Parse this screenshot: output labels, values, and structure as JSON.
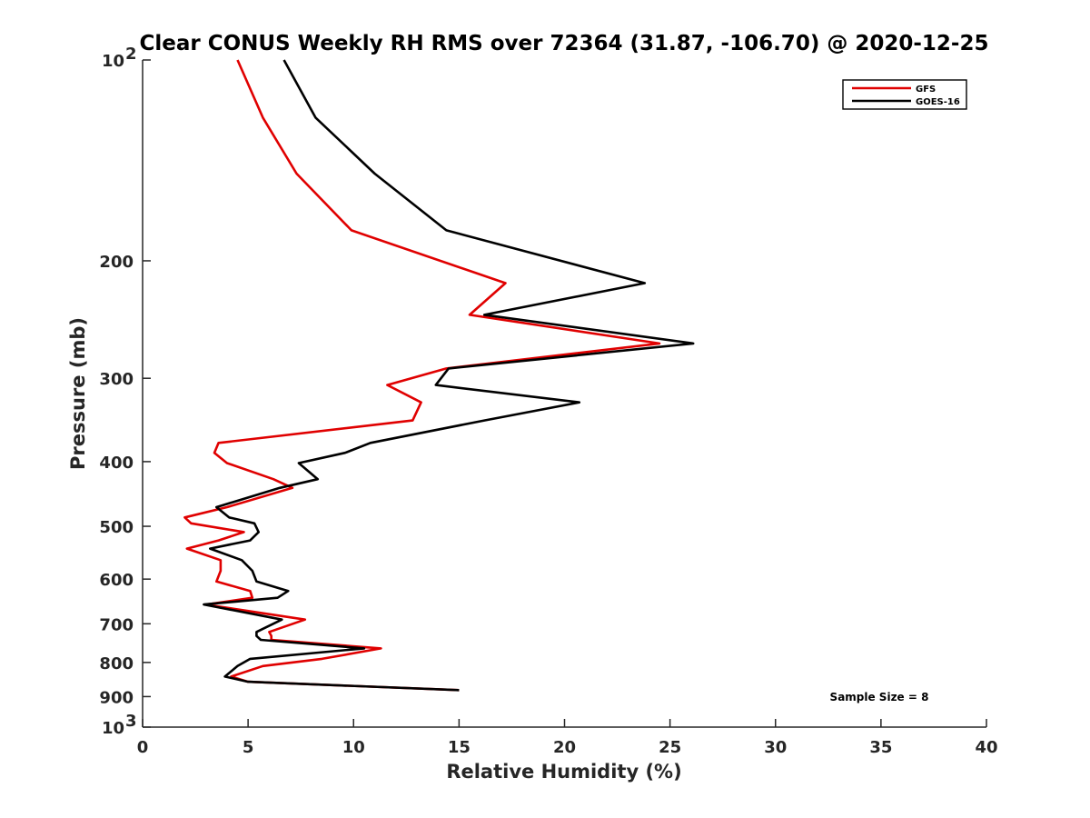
{
  "chart_data": {
    "type": "line",
    "title": "Clear CONUS Weekly RH RMS over 72364 (31.87, -106.70) @ 2020-12-25",
    "xlabel": "Relative Humidity (%)",
    "ylabel": "Pressure (mb)",
    "xlim": [
      0,
      40
    ],
    "ylim": [
      100,
      1000
    ],
    "y_scale": "log",
    "y_reversed": true,
    "x_ticks": [
      "0",
      "5",
      "10",
      "15",
      "20",
      "25",
      "30",
      "35",
      "40"
    ],
    "y_ticks": [
      {
        "value": 100,
        "base": "10",
        "exp": "2"
      },
      {
        "value": 200,
        "label": "200"
      },
      {
        "value": 300,
        "label": "300"
      },
      {
        "value": 400,
        "label": "400"
      },
      {
        "value": 500,
        "label": "500"
      },
      {
        "value": 600,
        "label": "600"
      },
      {
        "value": 700,
        "label": "700"
      },
      {
        "value": 800,
        "label": "800"
      },
      {
        "value": 900,
        "label": "900"
      },
      {
        "value": 1000,
        "base": "10",
        "exp": "3"
      }
    ],
    "legend_position": "top-right",
    "grid": false,
    "annotation": "Sample Size = 8",
    "series": [
      {
        "name": "GFS",
        "color": "#e00000",
        "points": [
          [
            4.5,
            100
          ],
          [
            5.7,
            122
          ],
          [
            7.3,
            148
          ],
          [
            9.9,
            180
          ],
          [
            17.2,
            216
          ],
          [
            15.5,
            241
          ],
          [
            24.5,
            266
          ],
          [
            14.4,
            290
          ],
          [
            11.6,
            307
          ],
          [
            13.2,
            326
          ],
          [
            12.8,
            347
          ],
          [
            3.6,
            375
          ],
          [
            3.4,
            388
          ],
          [
            4.0,
            402
          ],
          [
            6.2,
            425
          ],
          [
            7.1,
            438
          ],
          [
            4.0,
            468
          ],
          [
            2.0,
            485
          ],
          [
            2.3,
            495
          ],
          [
            4.8,
            510
          ],
          [
            3.6,
            525
          ],
          [
            2.1,
            540
          ],
          [
            3.7,
            562
          ],
          [
            3.7,
            583
          ],
          [
            3.5,
            605
          ],
          [
            5.1,
            625
          ],
          [
            5.2,
            640
          ],
          [
            3.0,
            655
          ],
          [
            7.7,
            690
          ],
          [
            6.0,
            720
          ],
          [
            6.1,
            730
          ],
          [
            6.1,
            740
          ],
          [
            11.3,
            762
          ],
          [
            8.5,
            790
          ],
          [
            5.7,
            810
          ],
          [
            4.2,
            840
          ],
          [
            5.0,
            855
          ],
          [
            15.0,
            880
          ]
        ]
      },
      {
        "name": "GOES-16",
        "color": "#000000",
        "points": [
          [
            6.7,
            100
          ],
          [
            8.2,
            122
          ],
          [
            11.0,
            148
          ],
          [
            14.4,
            180
          ],
          [
            23.8,
            216
          ],
          [
            16.2,
            241
          ],
          [
            26.1,
            266
          ],
          [
            14.5,
            290
          ],
          [
            13.9,
            307
          ],
          [
            20.7,
            326
          ],
          [
            16.2,
            347
          ],
          [
            10.8,
            375
          ],
          [
            9.6,
            388
          ],
          [
            7.4,
            402
          ],
          [
            8.3,
            425
          ],
          [
            6.5,
            438
          ],
          [
            3.5,
            468
          ],
          [
            4.1,
            485
          ],
          [
            5.3,
            495
          ],
          [
            5.5,
            510
          ],
          [
            5.1,
            525
          ],
          [
            3.2,
            540
          ],
          [
            4.7,
            562
          ],
          [
            5.2,
            583
          ],
          [
            5.4,
            605
          ],
          [
            6.9,
            625
          ],
          [
            6.4,
            640
          ],
          [
            2.9,
            655
          ],
          [
            6.6,
            690
          ],
          [
            5.4,
            720
          ],
          [
            5.4,
            730
          ],
          [
            5.6,
            740
          ],
          [
            10.5,
            762
          ],
          [
            5.1,
            790
          ],
          [
            4.5,
            810
          ],
          [
            3.9,
            840
          ],
          [
            5.0,
            855
          ],
          [
            15.0,
            880
          ]
        ]
      }
    ]
  }
}
